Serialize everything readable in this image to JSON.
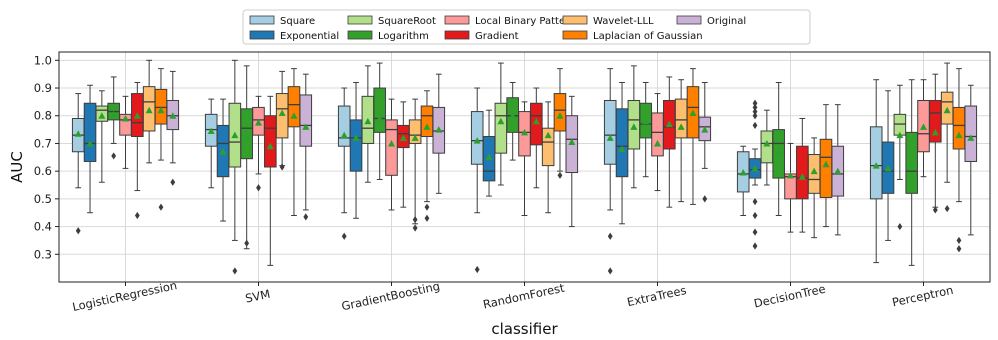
{
  "chart_data": {
    "type": "box",
    "xlabel": "classifier",
    "ylabel": "AUC",
    "ylim": [
      0.2,
      1.03
    ],
    "yticks": [
      0.3,
      0.4,
      0.5,
      0.6,
      0.7,
      0.8,
      0.9,
      1.0
    ],
    "ytick_labels": [
      "0.3",
      "0.4",
      "0.5",
      "0.6",
      "0.7",
      "0.8",
      "0.9",
      "1.0"
    ],
    "grid": true,
    "legend_position": "top-center",
    "categories": [
      "LogisticRegression",
      "SVM",
      "GradientBoosting",
      "RandomForest",
      "ExtraTrees",
      "DecisionTree",
      "Perceptron"
    ],
    "series": [
      {
        "name": "Square",
        "color": "#a6cee3",
        "stats": [
          {
            "min": 0.54,
            "q1": 0.67,
            "median": 0.73,
            "q3": 0.79,
            "max": 0.88,
            "mean": 0.735,
            "outliers": [
              0.385
            ]
          },
          {
            "min": 0.54,
            "q1": 0.69,
            "median": 0.75,
            "q3": 0.805,
            "max": 0.86,
            "mean": 0.745,
            "outliers": []
          },
          {
            "min": 0.45,
            "q1": 0.69,
            "median": 0.72,
            "q3": 0.835,
            "max": 0.9,
            "mean": 0.73,
            "outliers": [
              0.365
            ]
          },
          {
            "min": 0.45,
            "q1": 0.625,
            "median": 0.71,
            "q3": 0.815,
            "max": 0.9,
            "mean": 0.71,
            "outliers": [
              0.245
            ]
          },
          {
            "min": 0.46,
            "q1": 0.625,
            "median": 0.73,
            "q3": 0.855,
            "max": 0.97,
            "mean": 0.72,
            "outliers": [
              0.365,
              0.24
            ]
          },
          {
            "min": 0.44,
            "q1": 0.525,
            "median": 0.59,
            "q3": 0.67,
            "max": 0.69,
            "mean": 0.595,
            "outliers": []
          },
          {
            "min": 0.27,
            "q1": 0.5,
            "median": 0.62,
            "q3": 0.76,
            "max": 0.93,
            "mean": 0.62,
            "outliers": []
          }
        ]
      },
      {
        "name": "Exponential",
        "color": "#1f78b4",
        "stats": [
          {
            "min": 0.45,
            "q1": 0.635,
            "median": 0.7,
            "q3": 0.845,
            "max": 0.91,
            "mean": 0.7,
            "outliers": []
          },
          {
            "min": 0.42,
            "q1": 0.58,
            "median": 0.7,
            "q3": 0.765,
            "max": 0.86,
            "mean": 0.67,
            "outliers": []
          },
          {
            "min": 0.43,
            "q1": 0.6,
            "median": 0.72,
            "q3": 0.785,
            "max": 0.92,
            "mean": 0.72,
            "outliers": []
          },
          {
            "min": 0.51,
            "q1": 0.565,
            "median": 0.6,
            "q3": 0.725,
            "max": 0.82,
            "mean": 0.65,
            "outliers": []
          },
          {
            "min": 0.41,
            "q1": 0.58,
            "median": 0.69,
            "q3": 0.825,
            "max": 0.92,
            "mean": 0.68,
            "outliers": []
          },
          {
            "min": 0.55,
            "q1": 0.575,
            "median": 0.605,
            "q3": 0.645,
            "max": 0.68,
            "mean": 0.61,
            "outliers": [
              0.845,
              0.83,
              0.815,
              0.8,
              0.765,
              0.49,
              0.44,
              0.38,
              0.33
            ]
          },
          {
            "min": 0.35,
            "q1": 0.52,
            "median": 0.6,
            "q3": 0.705,
            "max": 0.89,
            "mean": 0.61,
            "outliers": []
          }
        ]
      },
      {
        "name": "SquareRoot",
        "color": "#b2df8a",
        "stats": [
          {
            "min": 0.56,
            "q1": 0.78,
            "median": 0.82,
            "q3": 0.835,
            "max": 0.89,
            "mean": 0.8,
            "outliers": []
          },
          {
            "min": 0.35,
            "q1": 0.615,
            "median": 0.705,
            "q3": 0.845,
            "max": 1.0,
            "mean": 0.73,
            "outliers": [
              0.24
            ]
          },
          {
            "min": 0.56,
            "q1": 0.7,
            "median": 0.755,
            "q3": 0.87,
            "max": 0.98,
            "mean": 0.78,
            "outliers": []
          },
          {
            "min": 0.55,
            "q1": 0.665,
            "median": 0.8,
            "q3": 0.845,
            "max": 0.99,
            "mean": 0.78,
            "outliers": []
          },
          {
            "min": 0.54,
            "q1": 0.68,
            "median": 0.785,
            "q3": 0.855,
            "max": 0.98,
            "mean": 0.76,
            "outliers": []
          },
          {
            "min": 0.55,
            "q1": 0.63,
            "median": 0.7,
            "q3": 0.745,
            "max": 0.82,
            "mean": 0.7,
            "outliers": []
          },
          {
            "min": 0.57,
            "q1": 0.73,
            "median": 0.77,
            "q3": 0.805,
            "max": 0.91,
            "mean": 0.73,
            "outliers": [
              0.4
            ]
          }
        ]
      },
      {
        "name": "Logarithm",
        "color": "#33a02c",
        "stats": [
          {
            "min": 0.7,
            "q1": 0.785,
            "median": 0.815,
            "q3": 0.845,
            "max": 0.94,
            "mean": 0.805,
            "outliers": [
              0.655
            ]
          },
          {
            "min": 0.32,
            "q1": 0.645,
            "median": 0.755,
            "q3": 0.825,
            "max": 0.98,
            "mean": 0.72,
            "outliers": [
              0.34
            ]
          },
          {
            "min": 0.57,
            "q1": 0.74,
            "median": 0.79,
            "q3": 0.9,
            "max": 0.99,
            "mean": 0.79,
            "outliers": []
          },
          {
            "min": 0.64,
            "q1": 0.74,
            "median": 0.8,
            "q3": 0.865,
            "max": 0.92,
            "mean": 0.8,
            "outliers": []
          },
          {
            "min": 0.58,
            "q1": 0.72,
            "median": 0.77,
            "q3": 0.845,
            "max": 0.92,
            "mean": 0.78,
            "outliers": []
          },
          {
            "min": 0.44,
            "q1": 0.575,
            "median": 0.7,
            "q3": 0.75,
            "max": 0.92,
            "mean": 0.67,
            "outliers": []
          },
          {
            "min": 0.26,
            "q1": 0.52,
            "median": 0.6,
            "q3": 0.74,
            "max": 0.93,
            "mean": 0.62,
            "outliers": []
          }
        ]
      },
      {
        "name": "Local Binary Pattern",
        "color": "#fb9a99",
        "stats": [
          {
            "min": 0.61,
            "q1": 0.73,
            "median": 0.785,
            "q3": 0.805,
            "max": 0.87,
            "mean": 0.79,
            "outliers": []
          },
          {
            "min": 0.59,
            "q1": 0.73,
            "median": 0.785,
            "q3": 0.83,
            "max": 0.87,
            "mean": 0.775,
            "outliers": [
              0.54
            ]
          },
          {
            "min": 0.46,
            "q1": 0.585,
            "median": 0.75,
            "q3": 0.785,
            "max": 0.86,
            "mean": 0.7,
            "outliers": []
          },
          {
            "min": 0.44,
            "q1": 0.655,
            "median": 0.74,
            "q3": 0.815,
            "max": 0.85,
            "mean": 0.74,
            "outliers": []
          },
          {
            "min": 0.53,
            "q1": 0.655,
            "median": 0.74,
            "q3": 0.81,
            "max": 0.88,
            "mean": 0.7,
            "outliers": []
          },
          {
            "min": 0.38,
            "q1": 0.5,
            "median": 0.58,
            "q3": 0.59,
            "max": 0.7,
            "mean": 0.585,
            "outliers": []
          },
          {
            "min": 0.58,
            "q1": 0.67,
            "median": 0.735,
            "q3": 0.855,
            "max": 0.93,
            "mean": 0.76,
            "outliers": []
          }
        ]
      },
      {
        "name": "Gradient",
        "color": "#e31a1c",
        "stats": [
          {
            "min": 0.53,
            "q1": 0.725,
            "median": 0.775,
            "q3": 0.88,
            "max": 0.92,
            "mean": 0.8,
            "outliers": [
              0.44
            ]
          },
          {
            "min": 0.26,
            "q1": 0.615,
            "median": 0.755,
            "q3": 0.8,
            "max": 0.87,
            "mean": 0.69,
            "outliers": []
          },
          {
            "min": 0.47,
            "q1": 0.685,
            "median": 0.735,
            "q3": 0.765,
            "max": 0.85,
            "mean": 0.72,
            "outliers": []
          },
          {
            "min": 0.54,
            "q1": 0.695,
            "median": 0.8,
            "q3": 0.845,
            "max": 0.9,
            "mean": 0.78,
            "outliers": []
          },
          {
            "min": 0.47,
            "q1": 0.68,
            "median": 0.76,
            "q3": 0.855,
            "max": 0.94,
            "mean": 0.77,
            "outliers": []
          },
          {
            "min": 0.38,
            "q1": 0.5,
            "median": 0.575,
            "q3": 0.69,
            "max": 0.79,
            "mean": 0.58,
            "outliers": []
          },
          {
            "min": 0.47,
            "q1": 0.705,
            "median": 0.81,
            "q3": 0.855,
            "max": 0.95,
            "mean": 0.74,
            "outliers": [
              0.46
            ]
          }
        ]
      },
      {
        "name": "Wavelet-LLL",
        "color": "#fdbf6f",
        "stats": [
          {
            "min": 0.63,
            "q1": 0.745,
            "median": 0.85,
            "q3": 0.905,
            "max": 1.0,
            "mean": 0.82,
            "outliers": []
          },
          {
            "min": 0.62,
            "q1": 0.72,
            "median": 0.825,
            "q3": 0.88,
            "max": 0.96,
            "mean": 0.81,
            "outliers": [
              0.615
            ]
          },
          {
            "min": 0.41,
            "q1": 0.7,
            "median": 0.73,
            "q3": 0.785,
            "max": 0.86,
            "mean": 0.72,
            "outliers": [
              0.425,
              0.395
            ]
          },
          {
            "min": 0.45,
            "q1": 0.62,
            "median": 0.705,
            "q3": 0.755,
            "max": 0.85,
            "mean": 0.73,
            "outliers": []
          },
          {
            "min": 0.49,
            "q1": 0.72,
            "median": 0.785,
            "q3": 0.86,
            "max": 0.93,
            "mean": 0.76,
            "outliers": []
          },
          {
            "min": 0.36,
            "q1": 0.52,
            "median": 0.57,
            "q3": 0.66,
            "max": 0.72,
            "mean": 0.6,
            "outliers": []
          },
          {
            "min": 0.56,
            "q1": 0.77,
            "median": 0.85,
            "q3": 0.885,
            "max": 0.99,
            "mean": 0.82,
            "outliers": [
              0.465
            ]
          }
        ]
      },
      {
        "name": "Laplacian of Gaussian",
        "color": "#ff7f00",
        "stats": [
          {
            "min": 0.64,
            "q1": 0.77,
            "median": 0.83,
            "q3": 0.895,
            "max": 0.97,
            "mean": 0.82,
            "outliers": [
              0.47
            ]
          },
          {
            "min": 0.44,
            "q1": 0.76,
            "median": 0.84,
            "q3": 0.905,
            "max": 0.97,
            "mean": 0.8,
            "outliers": []
          },
          {
            "min": 0.49,
            "q1": 0.725,
            "median": 0.8,
            "q3": 0.835,
            "max": 0.89,
            "mean": 0.76,
            "outliers": [
              0.47,
              0.43
            ]
          },
          {
            "min": 0.6,
            "q1": 0.745,
            "median": 0.82,
            "q3": 0.88,
            "max": 0.97,
            "mean": 0.8,
            "outliers": [
              0.585
            ]
          },
          {
            "min": 0.48,
            "q1": 0.72,
            "median": 0.83,
            "q3": 0.905,
            "max": 0.97,
            "mean": 0.81,
            "outliers": []
          },
          {
            "min": 0.4,
            "q1": 0.505,
            "median": 0.65,
            "q3": 0.715,
            "max": 0.84,
            "mean": 0.625,
            "outliers": []
          },
          {
            "min": 0.49,
            "q1": 0.68,
            "median": 0.765,
            "q3": 0.83,
            "max": 0.97,
            "mean": 0.73,
            "outliers": [
              0.35,
              0.32
            ]
          }
        ]
      },
      {
        "name": "Original",
        "color": "#cab2d6",
        "stats": [
          {
            "min": 0.63,
            "q1": 0.75,
            "median": 0.8,
            "q3": 0.855,
            "max": 0.96,
            "mean": 0.8,
            "outliers": [
              0.56
            ]
          },
          {
            "min": 0.46,
            "q1": 0.69,
            "median": 0.765,
            "q3": 0.875,
            "max": 0.95,
            "mean": 0.76,
            "outliers": [
              0.435
            ]
          },
          {
            "min": 0.52,
            "q1": 0.665,
            "median": 0.745,
            "q3": 0.83,
            "max": 0.95,
            "mean": 0.75,
            "outliers": []
          },
          {
            "min": 0.4,
            "q1": 0.595,
            "median": 0.715,
            "q3": 0.8,
            "max": 0.87,
            "mean": 0.705,
            "outliers": []
          },
          {
            "min": 0.61,
            "q1": 0.71,
            "median": 0.76,
            "q3": 0.795,
            "max": 0.92,
            "mean": 0.75,
            "outliers": [
              0.5
            ]
          },
          {
            "min": 0.37,
            "q1": 0.51,
            "median": 0.59,
            "q3": 0.69,
            "max": 0.84,
            "mean": 0.6,
            "outliers": []
          },
          {
            "min": 0.37,
            "q1": 0.635,
            "median": 0.725,
            "q3": 0.835,
            "max": 0.91,
            "mean": 0.72,
            "outliers": []
          }
        ]
      }
    ]
  }
}
